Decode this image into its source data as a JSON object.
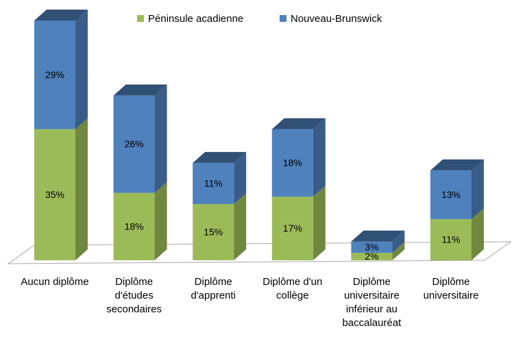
{
  "chart_data": {
    "type": "bar3d_stacked",
    "categories": [
      "Aucun diplôme",
      "Diplôme d'études secondaires",
      "Diplôme d'apprenti",
      "Diplôme d'un collège",
      "Diplôme universitaire inférieur au baccalauréat",
      "Diplôme universitaire"
    ],
    "series": [
      {
        "name": "Péninsule acadienne",
        "color": "#9bbb59",
        "values": [
          35,
          18,
          15,
          17,
          2,
          11
        ],
        "value_labels": [
          "35%",
          "18%",
          "15%",
          "17%",
          "2%",
          "11%"
        ]
      },
      {
        "name": "Nouveau-Brunswick",
        "color": "#4f81bd",
        "values": [
          29,
          26,
          11,
          18,
          3,
          13
        ],
        "value_labels": [
          "29%",
          "26%",
          "11%",
          "18%",
          "3%",
          "13%"
        ]
      }
    ],
    "legend": "top"
  }
}
